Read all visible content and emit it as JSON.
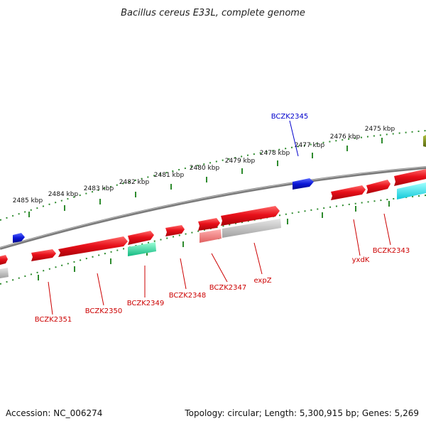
{
  "title": "Bacillus cereus E33L, complete genome",
  "footer": {
    "accession": "Accession: NC_006274",
    "summary": "Topology: circular; Length: 5,300,915 bp; Genes: 5,269"
  },
  "scale_unit": "kbp",
  "ticks": [
    {
      "kbp": 2475,
      "label": "2475 kbp"
    },
    {
      "kbp": 2476,
      "label": "2476 kbp"
    },
    {
      "kbp": 2477,
      "label": "2477 kbp"
    },
    {
      "kbp": 2478,
      "label": "2478 kbp"
    },
    {
      "kbp": 2479,
      "label": "2479 kbp"
    },
    {
      "kbp": 2480,
      "label": "2480 kbp"
    },
    {
      "kbp": 2481,
      "label": "2481 kbp"
    },
    {
      "kbp": 2482,
      "label": "2482 kbp"
    },
    {
      "kbp": 2483,
      "label": "2483 kbp"
    },
    {
      "kbp": 2484,
      "label": "2484 kbp"
    },
    {
      "kbp": 2485,
      "label": "2485 kbp"
    }
  ],
  "gene_labels": [
    {
      "name": "BCZK2345",
      "color": "#0000cc"
    },
    {
      "name": "BCZK2343",
      "color": "#cc0000"
    },
    {
      "name": "yxdK",
      "color": "#cc0000"
    },
    {
      "name": "expZ",
      "color": "#cc0000"
    },
    {
      "name": "BCZK2347",
      "color": "#cc0000"
    },
    {
      "name": "BCZK2348",
      "color": "#cc0000"
    },
    {
      "name": "BCZK2349",
      "color": "#cc0000"
    },
    {
      "name": "BCZK2350",
      "color": "#cc0000"
    },
    {
      "name": "BCZK2351",
      "color": "#cc0000"
    }
  ],
  "colors": {
    "backbone": "#808080",
    "scale_ticks": "#2e8b2e",
    "cds": "#e8101a",
    "cds_light": "#f07070",
    "reverse_feature": "#0a16d8",
    "cyan_feature": "#22e0e8",
    "green_feature": "#30e0a0",
    "gray_feature": "#b8b8b8",
    "olive_feature": "#7a8a20"
  }
}
